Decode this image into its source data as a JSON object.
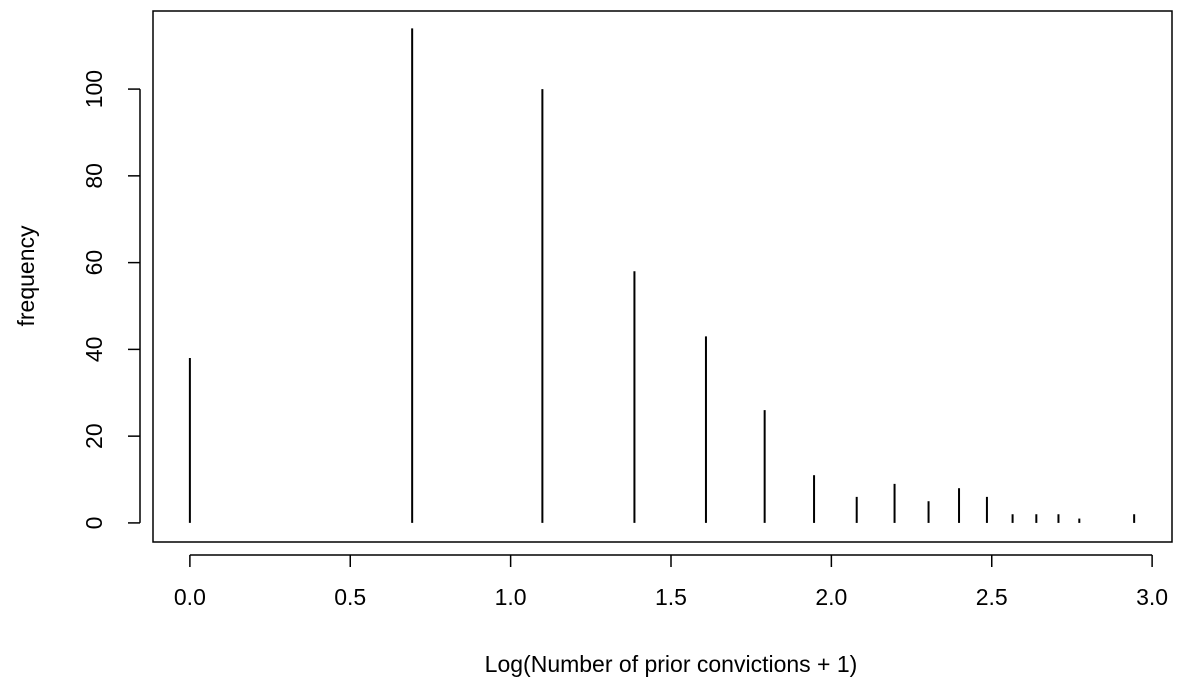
{
  "chart_data": {
    "type": "spike",
    "x_label": "Log(Number of prior convictions + 1)",
    "y_label": "frequency",
    "x": [
      0,
      0.693,
      1.099,
      1.386,
      1.609,
      1.792,
      1.946,
      2.079,
      2.197,
      2.303,
      2.398,
      2.485,
      2.565,
      2.639,
      2.708,
      2.773,
      2.944
    ],
    "values": [
      38,
      114,
      100,
      58,
      43,
      26,
      11,
      6,
      9,
      5,
      8,
      6,
      2,
      2,
      2,
      1,
      2
    ],
    "color": "#000000",
    "xlim": [
      -0.115,
      3.062
    ],
    "ylim": [
      -4.4,
      118
    ],
    "xticks": [
      {
        "value": 0,
        "label": "0.0"
      },
      0.5,
      {
        "value": 1,
        "label": "1.0"
      },
      1.5,
      {
        "value": 2,
        "label": "2.0"
      },
      2.5,
      {
        "value": 3,
        "label": "3.0"
      }
    ],
    "yticks": [
      0,
      20,
      40,
      60,
      80,
      100
    ],
    "grid": false
  }
}
